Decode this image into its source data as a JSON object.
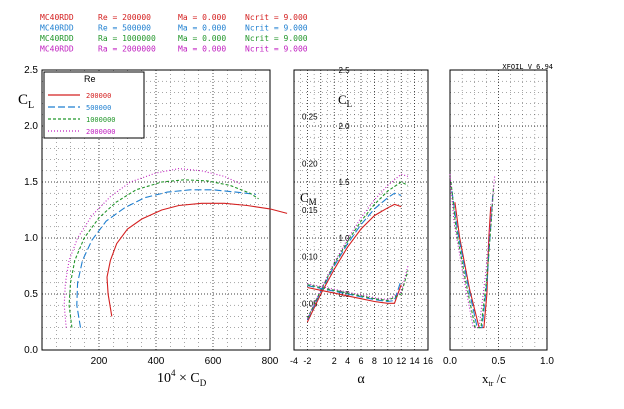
{
  "header": {
    "version": "XFOIL V 6.94",
    "rows": [
      {
        "airfoil": "MC40RDD",
        "re_label": "Re = 200000",
        "ma_label": "Ma = 0.000",
        "ncrit_label": "Ncrit = 9.000",
        "color": "#d42020"
      },
      {
        "airfoil": "MC40RDD",
        "re_label": "Re = 500000",
        "ma_label": "Ma = 0.000",
        "ncrit_label": "Ncrit = 9.000",
        "color": "#1f7fd0"
      },
      {
        "airfoil": "MC40RDD",
        "re_label": "Ra = 1000000",
        "ma_label": "Ma = 0.000",
        "ncrit_label": "Ncrit = 9.000",
        "color": "#22962a"
      },
      {
        "airfoil": "MC40RDD",
        "re_label": "Ra = 2000000",
        "ma_label": "Ma = 0.000",
        "ncrit_label": "Ncrit = 9.000",
        "color": "#c020c0"
      }
    ]
  },
  "legend": {
    "title": "Re",
    "entries": [
      "200000",
      "500000",
      "1000000",
      "2000000"
    ],
    "colors": [
      "#d42020",
      "#1f7fd0",
      "#22962a",
      "#c020c0"
    ]
  },
  "chart_data": [
    {
      "type": "line",
      "name": "drag-polar",
      "xlabel": "10⁴ × C_D",
      "ylabel": "C_L",
      "xlabel_parts": {
        "prefix": "10",
        "exp": "4",
        "mid": " × C",
        "sub": "D"
      },
      "ylabel_parts": {
        "main": "C",
        "sub": "L"
      },
      "xlim": [
        0,
        800
      ],
      "ylim": [
        0,
        2.5
      ],
      "xticks": [
        "200",
        "400",
        "600",
        "800"
      ],
      "yticks": [
        "0.0",
        "0.5",
        "1.0",
        "1.5",
        "2.0",
        "2.5"
      ],
      "series": [
        {
          "name": "200000",
          "color": "#d42020",
          "dash": "",
          "points": [
            [
              245,
              0.3
            ],
            [
              232,
              0.5
            ],
            [
              228,
              0.65
            ],
            [
              240,
              0.8
            ],
            [
              262,
              0.95
            ],
            [
              300,
              1.08
            ],
            [
              350,
              1.17
            ],
            [
              420,
              1.25
            ],
            [
              480,
              1.29
            ],
            [
              560,
              1.31
            ],
            [
              640,
              1.31
            ],
            [
              720,
              1.29
            ],
            [
              800,
              1.26
            ],
            [
              860,
              1.22
            ]
          ]
        },
        {
          "name": "500000",
          "color": "#1f7fd0",
          "dash": "7 3",
          "points": [
            [
              135,
              0.2
            ],
            [
              122,
              0.4
            ],
            [
              125,
              0.6
            ],
            [
              142,
              0.8
            ],
            [
              175,
              0.98
            ],
            [
              225,
              1.15
            ],
            [
              290,
              1.27
            ],
            [
              360,
              1.36
            ],
            [
              440,
              1.41
            ],
            [
              520,
              1.43
            ],
            [
              600,
              1.43
            ],
            [
              680,
              1.41
            ],
            [
              750,
              1.39
            ]
          ]
        },
        {
          "name": "1000000",
          "color": "#22962a",
          "dash": "3 2",
          "points": [
            [
              105,
              0.2
            ],
            [
              95,
              0.4
            ],
            [
              100,
              0.6
            ],
            [
              115,
              0.8
            ],
            [
              148,
              1.0
            ],
            [
              200,
              1.18
            ],
            [
              260,
              1.32
            ],
            [
              330,
              1.43
            ],
            [
              420,
              1.5
            ],
            [
              500,
              1.52
            ],
            [
              580,
              1.51
            ],
            [
              660,
              1.47
            ],
            [
              730,
              1.4
            ],
            [
              760,
              1.35
            ]
          ]
        },
        {
          "name": "2000000",
          "color": "#c020c0",
          "dash": "1 2",
          "points": [
            [
              85,
              0.2
            ],
            [
              78,
              0.4
            ],
            [
              82,
              0.6
            ],
            [
              95,
              0.8
            ],
            [
              125,
              1.0
            ],
            [
              175,
              1.2
            ],
            [
              240,
              1.37
            ],
            [
              310,
              1.5
            ],
            [
              400,
              1.58
            ],
            [
              480,
              1.62
            ],
            [
              560,
              1.6
            ],
            [
              640,
              1.55
            ],
            [
              700,
              1.48
            ]
          ]
        }
      ]
    },
    {
      "type": "line",
      "name": "lift-moment-vs-alpha",
      "xlabel": "α",
      "ylabel": "C_L",
      "ylabel2": "C_M",
      "ylabel_parts": {
        "main": "C",
        "sub": "L"
      },
      "ylabel2_parts": {
        "main": "C",
        "sub": "M"
      },
      "xlim": [
        -4,
        16
      ],
      "ylim": [
        0,
        2.5
      ],
      "ylim_cm": [
        0.0,
        0.3
      ],
      "xticks": [
        "-4",
        "-2",
        "2",
        "4",
        "6",
        "8",
        "10",
        "12",
        "14",
        "16"
      ],
      "yticks": [
        "0.5",
        "1.0",
        "1.5",
        "2.0",
        "2.5"
      ],
      "cm_ticks": [
        "0.05",
        "0.10",
        "0.15",
        "0.20",
        "0.25"
      ],
      "cl_series": [
        {
          "name": "200000",
          "color": "#d42020",
          "dash": "",
          "points": [
            [
              -2,
              0.25
            ],
            [
              0,
              0.5
            ],
            [
              2,
              0.72
            ],
            [
              4,
              0.92
            ],
            [
              6,
              1.08
            ],
            [
              8,
              1.2
            ],
            [
              10,
              1.27
            ],
            [
              11,
              1.3
            ],
            [
              12,
              1.28
            ]
          ]
        },
        {
          "name": "500000",
          "color": "#1f7fd0",
          "dash": "7 3",
          "points": [
            [
              -2,
              0.27
            ],
            [
              0,
              0.52
            ],
            [
              2,
              0.75
            ],
            [
              4,
              0.95
            ],
            [
              6,
              1.12
            ],
            [
              8,
              1.26
            ],
            [
              10,
              1.36
            ],
            [
              11,
              1.4
            ],
            [
              12,
              1.38
            ]
          ]
        },
        {
          "name": "1000000",
          "color": "#22962a",
          "dash": "3 2",
          "points": [
            [
              -2,
              0.28
            ],
            [
              0,
              0.53
            ],
            [
              2,
              0.77
            ],
            [
              4,
              0.97
            ],
            [
              6,
              1.15
            ],
            [
              8,
              1.3
            ],
            [
              10,
              1.42
            ],
            [
              12,
              1.5
            ],
            [
              13,
              1.47
            ]
          ]
        },
        {
          "name": "2000000",
          "color": "#c020c0",
          "dash": "1 2",
          "points": [
            [
              -2,
              0.28
            ],
            [
              0,
              0.54
            ],
            [
              2,
              0.78
            ],
            [
              4,
              0.99
            ],
            [
              6,
              1.18
            ],
            [
              8,
              1.34
            ],
            [
              10,
              1.47
            ],
            [
              12,
              1.57
            ],
            [
              13,
              1.55
            ]
          ]
        }
      ],
      "cm_series": [
        {
          "name": "200000",
          "color": "#d42020",
          "dash": "",
          "points": [
            [
              -2,
              0.067
            ],
            [
              0,
              0.064
            ],
            [
              2,
              0.061
            ],
            [
              4,
              0.058
            ],
            [
              6,
              0.055
            ],
            [
              8,
              0.052
            ],
            [
              10,
              0.05
            ],
            [
              11,
              0.05
            ],
            [
              12,
              0.07
            ]
          ]
        },
        {
          "name": "500000",
          "color": "#1f7fd0",
          "dash": "7 3",
          "points": [
            [
              -2,
              0.069
            ],
            [
              0,
              0.066
            ],
            [
              2,
              0.063
            ],
            [
              4,
              0.06
            ],
            [
              6,
              0.057
            ],
            [
              8,
              0.054
            ],
            [
              10,
              0.052
            ],
            [
              11,
              0.053
            ],
            [
              12,
              0.075
            ]
          ]
        },
        {
          "name": "1000000",
          "color": "#22962a",
          "dash": "3 2",
          "points": [
            [
              -2,
              0.07
            ],
            [
              0,
              0.067
            ],
            [
              2,
              0.064
            ],
            [
              4,
              0.061
            ],
            [
              6,
              0.058
            ],
            [
              8,
              0.055
            ],
            [
              10,
              0.053
            ],
            [
              12,
              0.06
            ],
            [
              13,
              0.085
            ]
          ]
        },
        {
          "name": "2000000",
          "color": "#c020c0",
          "dash": "1 2",
          "points": [
            [
              -2,
              0.071
            ],
            [
              0,
              0.068
            ],
            [
              2,
              0.065
            ],
            [
              4,
              0.062
            ],
            [
              6,
              0.059
            ],
            [
              8,
              0.056
            ],
            [
              10,
              0.054
            ],
            [
              12,
              0.062
            ],
            [
              13,
              0.09
            ]
          ]
        }
      ]
    },
    {
      "type": "line",
      "name": "transition-location",
      "xlabel": "x_tr / c",
      "xlabel_parts": {
        "main": "x",
        "sub": "tr",
        "tail": " /c"
      },
      "xlim": [
        0,
        1
      ],
      "ylim": [
        0,
        2.5
      ],
      "xticks": [
        "0.0",
        "0.5",
        "1.0"
      ],
      "series": [
        {
          "name": "200000",
          "color": "#d42020",
          "dash": "",
          "points": [
            [
              0.05,
              1.32
            ],
            [
              0.1,
              1.0
            ],
            [
              0.2,
              0.55
            ],
            [
              0.3,
              0.2
            ],
            [
              0.35,
              0.2
            ],
            [
              0.38,
              0.5
            ],
            [
              0.4,
              1.0
            ],
            [
              0.42,
              1.28
            ]
          ]
        },
        {
          "name": "500000",
          "color": "#1f7fd0",
          "dash": "7 3",
          "points": [
            [
              0.02,
              1.42
            ],
            [
              0.08,
              1.05
            ],
            [
              0.18,
              0.6
            ],
            [
              0.28,
              0.2
            ],
            [
              0.33,
              0.2
            ],
            [
              0.38,
              0.6
            ],
            [
              0.42,
              1.1
            ],
            [
              0.44,
              1.38
            ]
          ]
        },
        {
          "name": "1000000",
          "color": "#22962a",
          "dash": "3 2",
          "points": [
            [
              0.01,
              1.5
            ],
            [
              0.06,
              1.1
            ],
            [
              0.16,
              0.62
            ],
            [
              0.26,
              0.2
            ],
            [
              0.32,
              0.2
            ],
            [
              0.38,
              0.65
            ],
            [
              0.43,
              1.2
            ],
            [
              0.45,
              1.47
            ]
          ]
        },
        {
          "name": "2000000",
          "color": "#c020c0",
          "dash": "1 2",
          "points": [
            [
              0.0,
              1.57
            ],
            [
              0.04,
              1.15
            ],
            [
              0.14,
              0.65
            ],
            [
              0.24,
              0.2
            ],
            [
              0.3,
              0.2
            ],
            [
              0.37,
              0.7
            ],
            [
              0.43,
              1.25
            ],
            [
              0.46,
              1.55
            ]
          ]
        }
      ]
    }
  ]
}
